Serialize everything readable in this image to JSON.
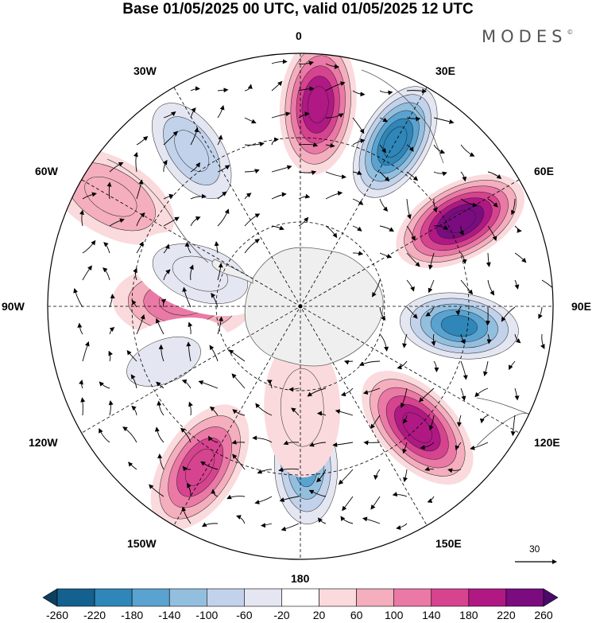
{
  "title": "Base 01/05/2025 00 UTC, valid 01/05/2025 12 UTC",
  "brand": "MODES",
  "brand_mark": "©",
  "longitude_labels": {
    "lon_0": "0",
    "lon_30e": "30E",
    "lon_60e": "60E",
    "lon_90e": "90E",
    "lon_120e": "120E",
    "lon_150e": "150E",
    "lon_180": "180",
    "lon_150w": "150W",
    "lon_120w": "120W",
    "lon_90w": "90W",
    "lon_60w": "60W",
    "lon_30w": "30W"
  },
  "reference_vector": {
    "value": "30"
  },
  "colorbar": {
    "tick_labels": [
      "-260",
      "-220",
      "-180",
      "-140",
      "-100",
      "-60",
      "-20",
      "20",
      "60",
      "100",
      "140",
      "180",
      "220",
      "260"
    ],
    "colors": [
      "#0d3f5f",
      "#14608e",
      "#2f86b8",
      "#5aa3d0",
      "#93bfdf",
      "#c2d2ea",
      "#e4e6f2",
      "#ffffff",
      "#fadadd",
      "#f4aebe",
      "#ea79a5",
      "#d6438f",
      "#b01884",
      "#7a0c80",
      "#4a0a6a"
    ]
  },
  "colors": {
    "land": "#efefef",
    "coastline": "#555555",
    "grid": "#000000",
    "arrow": "#000000"
  },
  "anomalies": [
    {
      "name": "neg-atlantic-a",
      "lon": -35,
      "lat": -45,
      "value": -120
    },
    {
      "name": "pos-south-america",
      "lon": -60,
      "lat": -38,
      "value": 90
    },
    {
      "name": "pos-0",
      "lon": 5,
      "lat": -42,
      "value": 230
    },
    {
      "name": "neg-30e",
      "lon": 30,
      "lat": -45,
      "value": -240
    },
    {
      "name": "pos-60e",
      "lon": 62,
      "lat": -47,
      "value": 240
    },
    {
      "name": "neg-95e",
      "lon": 97,
      "lat": -52,
      "value": -230
    },
    {
      "name": "pos-135e",
      "lon": 136,
      "lat": -50,
      "value": 215
    },
    {
      "name": "neg-175e",
      "lon": 178,
      "lat": -52,
      "value": -170
    },
    {
      "name": "pos-145w",
      "lon": -148,
      "lat": -45,
      "value": 180
    },
    {
      "name": "pos-90w",
      "lon": -88,
      "lat": -62,
      "value": 120
    },
    {
      "name": "neg-110w",
      "lon": -112,
      "lat": -55,
      "value": -70
    },
    {
      "name": "pos-180-inner",
      "lon": 179,
      "lat": -66,
      "value": 70
    },
    {
      "name": "neg-75w",
      "lon": -72,
      "lat": -65,
      "value": -80
    }
  ]
}
